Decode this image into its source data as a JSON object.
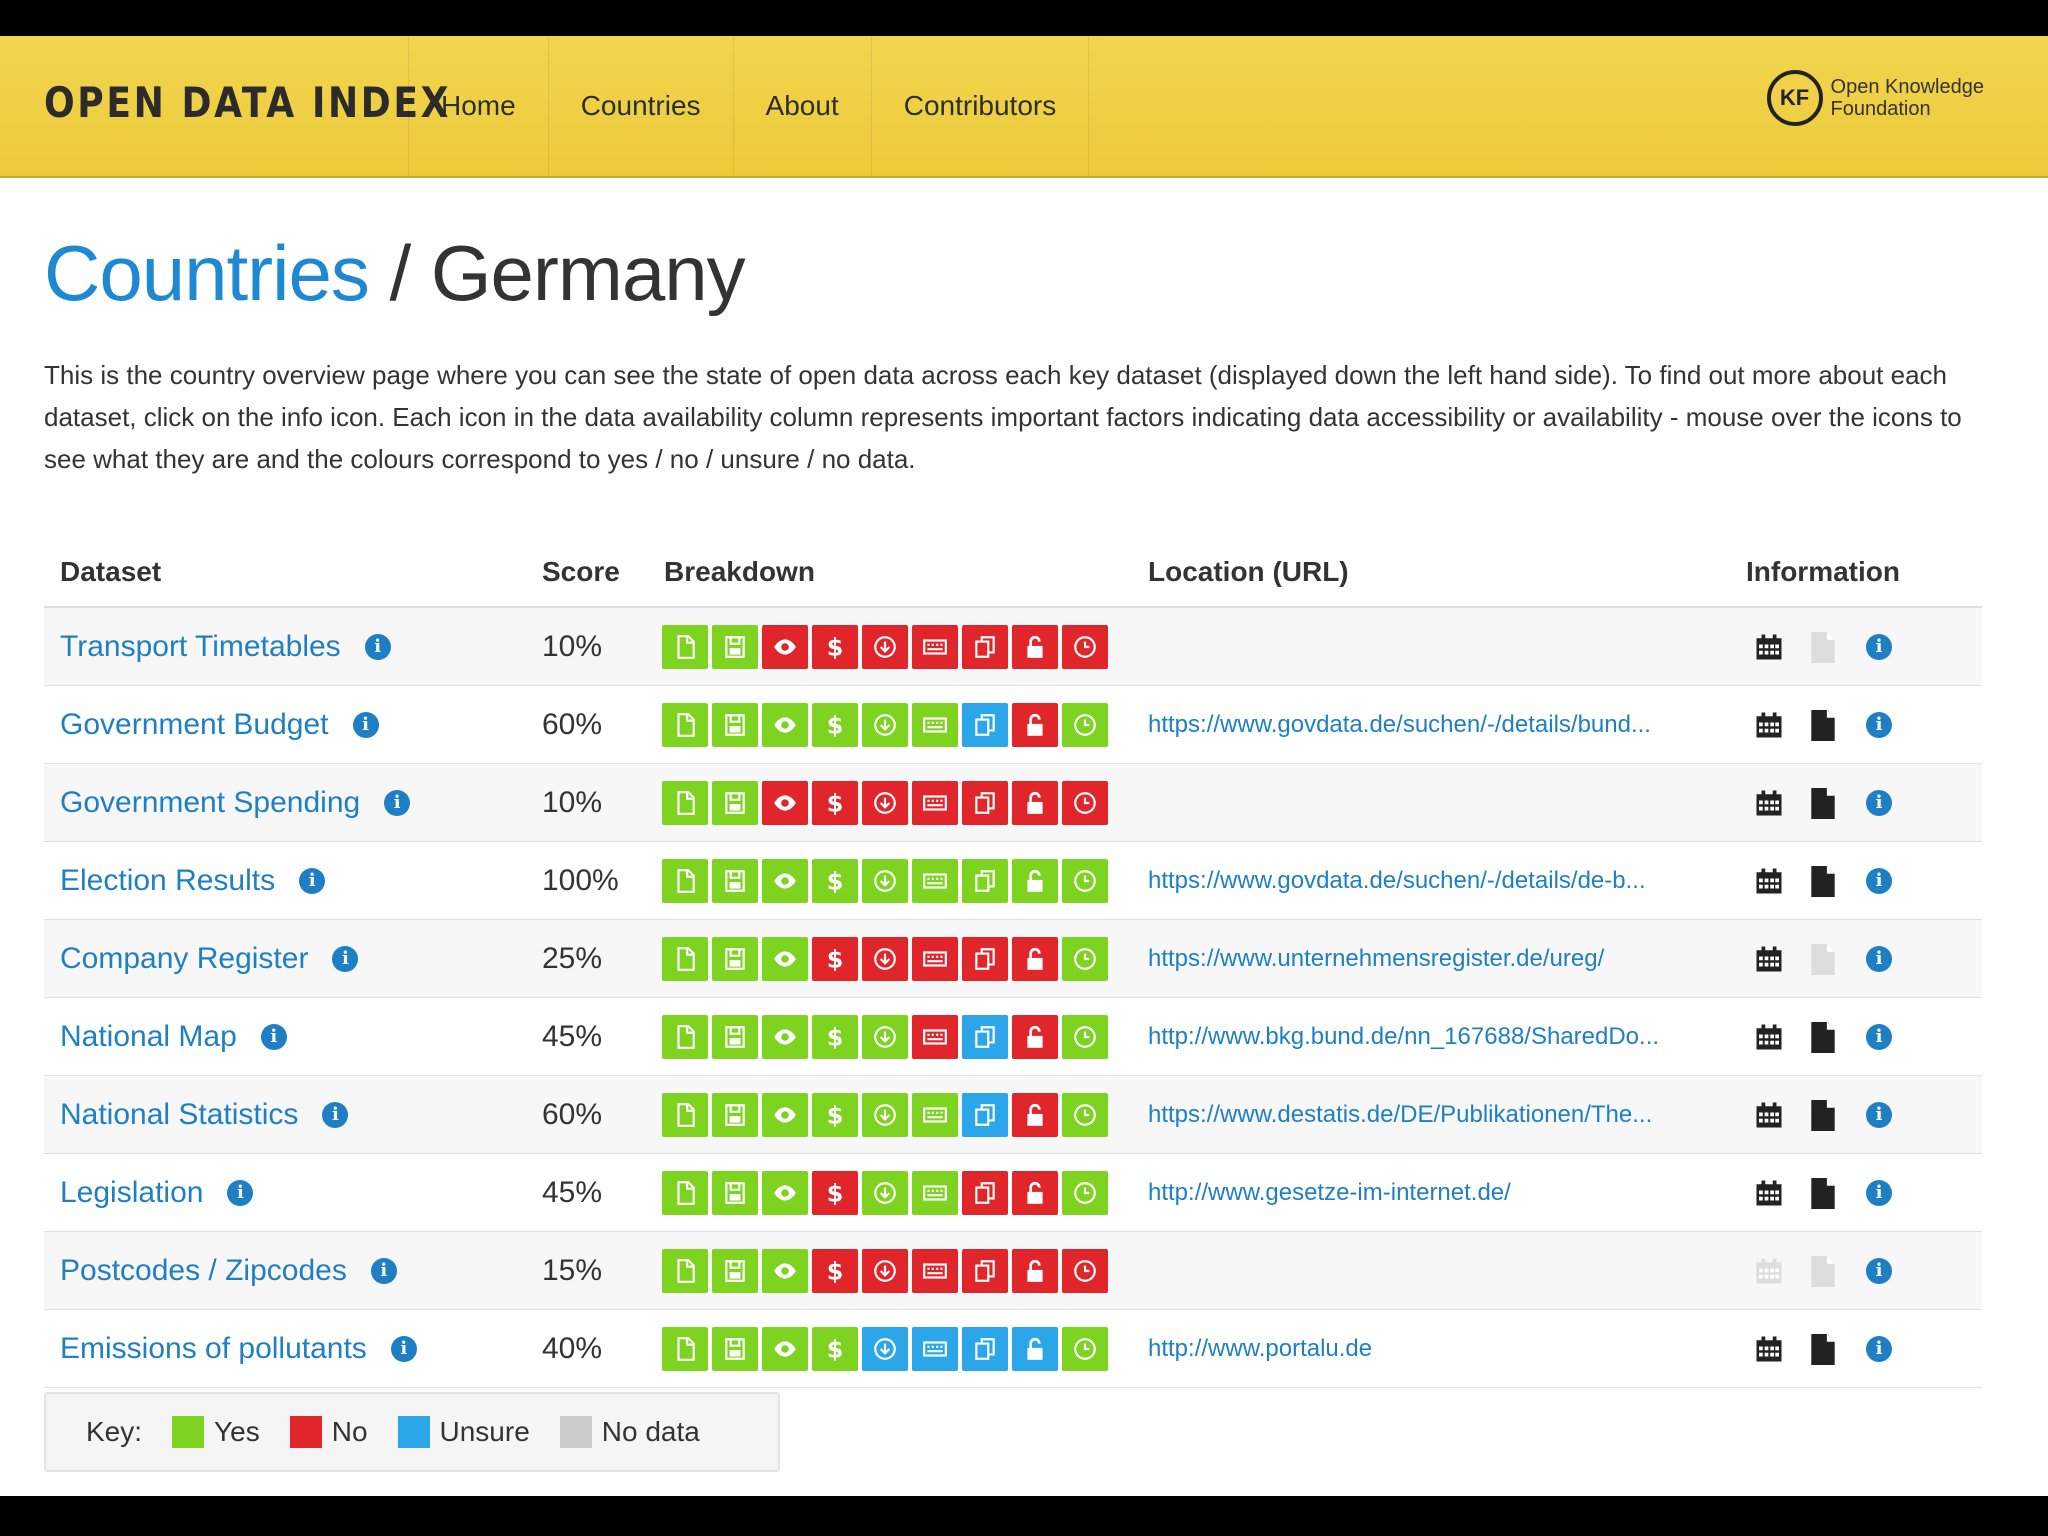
{
  "header": {
    "brand": "OPEN DATA INDEX",
    "nav": [
      "Home",
      "Countries",
      "About",
      "Contributors"
    ],
    "org_logo_mark": "KF",
    "org_line1": "Open Knowledge",
    "org_line2": "Foundation"
  },
  "page": {
    "breadcrumb": "Countries",
    "separator": " / ",
    "country": "Germany",
    "intro": "This is the country overview page where you can see the state of open data across each key dataset (displayed down the left hand side). To find out more about each dataset, click on the info icon. Each icon in the data availability column represents important factors indicating data accessibility or availability - mouse over the icons to see what they are and the colours correspond to yes / no / unsure / no data."
  },
  "table": {
    "headers": {
      "dataset": "Dataset",
      "score": "Score",
      "breakdown": "Breakdown",
      "location": "Location (URL)",
      "information": "Information"
    },
    "breakdown_icons": [
      "doc-icon",
      "save-icon",
      "eye-icon",
      "dollar-icon",
      "download-icon",
      "keyboard-icon",
      "copy-icon",
      "unlock-icon",
      "clock-icon"
    ],
    "rows": [
      {
        "name": "Transport Timetables",
        "score": "10%",
        "breakdown": [
          "y",
          "y",
          "n",
          "n",
          "n",
          "n",
          "n",
          "n",
          "n"
        ],
        "url": "",
        "cal": "dark",
        "doc": "light"
      },
      {
        "name": "Government Budget",
        "score": "60%",
        "breakdown": [
          "y",
          "y",
          "y",
          "y",
          "y",
          "y",
          "u",
          "n",
          "y"
        ],
        "url": "https://www.govdata.de/suchen/-/details/bund...",
        "cal": "dark",
        "doc": "dark"
      },
      {
        "name": "Government Spending",
        "score": "10%",
        "breakdown": [
          "y",
          "y",
          "n",
          "n",
          "n",
          "n",
          "n",
          "n",
          "n"
        ],
        "url": "",
        "cal": "dark",
        "doc": "dark"
      },
      {
        "name": "Election Results",
        "score": "100%",
        "breakdown": [
          "y",
          "y",
          "y",
          "y",
          "y",
          "y",
          "y",
          "y",
          "y"
        ],
        "url": "https://www.govdata.de/suchen/-/details/de-b...",
        "cal": "dark",
        "doc": "dark"
      },
      {
        "name": "Company Register",
        "score": "25%",
        "breakdown": [
          "y",
          "y",
          "y",
          "n",
          "n",
          "n",
          "n",
          "n",
          "y"
        ],
        "url": "https://www.unternehmensregister.de/ureg/",
        "cal": "dark",
        "doc": "light"
      },
      {
        "name": "National Map",
        "score": "45%",
        "breakdown": [
          "y",
          "y",
          "y",
          "y",
          "y",
          "n",
          "u",
          "n",
          "y"
        ],
        "url": "http://www.bkg.bund.de/nn_167688/SharedDo...",
        "cal": "dark",
        "doc": "dark"
      },
      {
        "name": "National Statistics",
        "score": "60%",
        "breakdown": [
          "y",
          "y",
          "y",
          "y",
          "y",
          "y",
          "u",
          "n",
          "y"
        ],
        "url": "https://www.destatis.de/DE/Publikationen/The...",
        "cal": "dark",
        "doc": "dark"
      },
      {
        "name": "Legislation",
        "score": "45%",
        "breakdown": [
          "y",
          "y",
          "y",
          "n",
          "y",
          "y",
          "n",
          "n",
          "y"
        ],
        "url": "http://www.gesetze-im-internet.de/",
        "cal": "dark",
        "doc": "dark"
      },
      {
        "name": "Postcodes / Zipcodes",
        "score": "15%",
        "breakdown": [
          "y",
          "y",
          "y",
          "n",
          "n",
          "n",
          "n",
          "n",
          "n"
        ],
        "url": "",
        "cal": "light",
        "doc": "light"
      },
      {
        "name": "Emissions of pollutants",
        "score": "40%",
        "breakdown": [
          "y",
          "y",
          "y",
          "y",
          "u",
          "u",
          "u",
          "u",
          "y"
        ],
        "url": "http://www.portalu.de",
        "cal": "dark",
        "doc": "dark"
      }
    ]
  },
  "key": {
    "label": "Key:",
    "items": [
      {
        "label": "Yes",
        "color": "#7ed321"
      },
      {
        "label": "No",
        "color": "#e0262b"
      },
      {
        "label": "Unsure",
        "color": "#2ba6e8"
      },
      {
        "label": "No data",
        "color": "#cccccc"
      }
    ]
  },
  "colors": {
    "y": "#7ed321",
    "n": "#e0262b",
    "u": "#2ba6e8",
    "accent": "#1e7fc4"
  }
}
